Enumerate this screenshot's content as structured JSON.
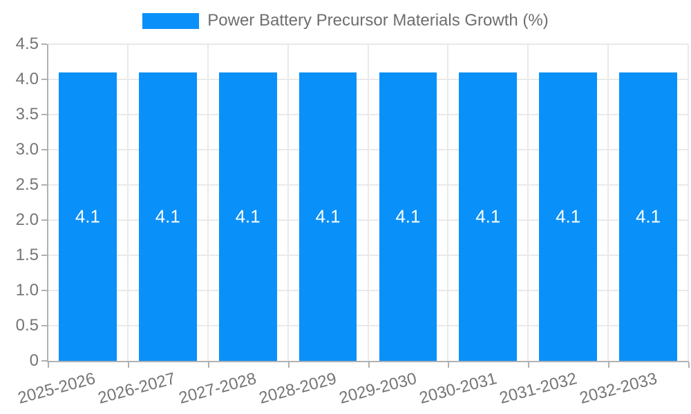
{
  "chart_data": {
    "type": "bar",
    "title": "Power Battery Precursor Materials Growth (%)",
    "legend": {
      "position": "top",
      "entries": [
        {
          "label": "Power Battery Precursor Materials Growth (%)",
          "color": "#0a90f9"
        }
      ]
    },
    "categories": [
      "2025-2026",
      "2026-2027",
      "2027-2028",
      "2028-2029",
      "2029-2030",
      "2030-2031",
      "2031-2032",
      "2032-2033"
    ],
    "series": [
      {
        "name": "Power Battery Precursor Materials Growth (%)",
        "values": [
          4.1,
          4.1,
          4.1,
          4.1,
          4.1,
          4.1,
          4.1,
          4.1
        ]
      }
    ],
    "value_labels": [
      "4.1",
      "4.1",
      "4.1",
      "4.1",
      "4.1",
      "4.1",
      "4.1",
      "4.1"
    ],
    "xlabel": "",
    "ylabel": "",
    "ylim": [
      0,
      4.5
    ],
    "ytick_values": [
      0,
      0.5,
      1.0,
      1.5,
      2.0,
      2.5,
      3.0,
      3.5,
      4.0,
      4.5
    ],
    "ytick_labels": [
      "0",
      "0.5",
      "1.0",
      "1.5",
      "2.0",
      "2.5",
      "3.0",
      "3.5",
      "4.0",
      "4.5"
    ],
    "grid": true,
    "x_label_rotation_deg": -15,
    "colors": {
      "bar": "#0a90f9",
      "grid": "#e9e9e9",
      "axis": "#b0b0b0",
      "tick_label": "#757575",
      "legend_text": "#6e6e6e",
      "value_label": "#ffffff",
      "background": "#ffffff"
    }
  }
}
